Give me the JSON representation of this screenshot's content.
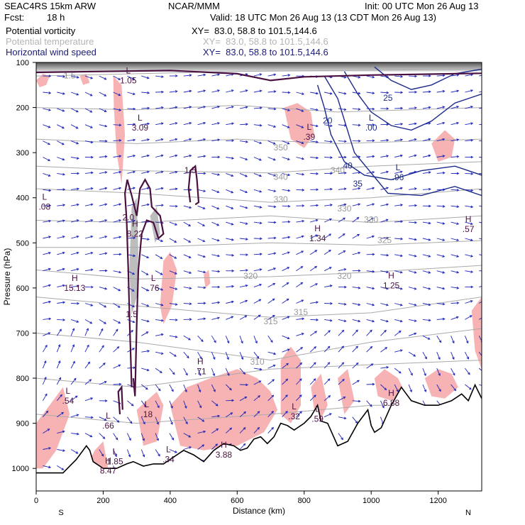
{
  "header": {
    "model": "SEAC4RS 15km ARW",
    "center": "NCAR/MMM",
    "init": "Init: 00 UTC Mon 26 Aug 13",
    "fcst_label": "Fcst:",
    "fcst_value": "18 h",
    "valid": "Valid: 18 UTC Mon 26 Aug 13 (13 CDT Mon 26 Aug 13)"
  },
  "fields": [
    {
      "name": "Potential vorticity",
      "xy": "XY=  83.0, 58.8 to 101.5,144.6",
      "color": "#000000"
    },
    {
      "name": "Potential temperature",
      "xy": "XY=  83.0, 58.8 to 101.5,144.6",
      "color": "#b4b4b4"
    },
    {
      "name": "Horizontal wind speed",
      "xy": "XY=  83.0, 58.8 to 101.5,144.6",
      "color": "#1b1b7a"
    }
  ],
  "colors": {
    "pv_contour": "#4a1140",
    "theta_contour": "#aaaaaa",
    "wind_contour": "#1b2a8a",
    "pv_shade": "#f7b3b3",
    "pv_shade_high": "#bdbdbd",
    "vector": "#1e24b8",
    "terrain": "#000000"
  },
  "chart_data": {
    "type": "cross-section",
    "xlabel": "Distance (km)",
    "ylabel": "Pressure (hPa)",
    "xlim": [
      0,
      1330
    ],
    "ylim": [
      1050,
      100
    ],
    "x_ticks": [
      0,
      200,
      400,
      600,
      800,
      1000,
      1200
    ],
    "y_ticks": [
      100,
      200,
      300,
      400,
      500,
      600,
      700,
      800,
      900,
      1000
    ],
    "end_labels": {
      "left": "S",
      "right": "N"
    },
    "terrain": [
      [
        0,
        1010
      ],
      [
        80,
        1010
      ],
      [
        120,
        980
      ],
      [
        150,
        950
      ],
      [
        160,
        960
      ],
      [
        170,
        985
      ],
      [
        200,
        1000
      ],
      [
        240,
        1000
      ],
      [
        270,
        990
      ],
      [
        290,
        985
      ],
      [
        320,
        995
      ],
      [
        350,
        990
      ],
      [
        380,
        990
      ],
      [
        410,
        975
      ],
      [
        440,
        960
      ],
      [
        470,
        970
      ],
      [
        500,
        985
      ],
      [
        530,
        960
      ],
      [
        560,
        945
      ],
      [
        590,
        950
      ],
      [
        610,
        960
      ],
      [
        630,
        955
      ],
      [
        650,
        935
      ],
      [
        670,
        930
      ],
      [
        690,
        945
      ],
      [
        710,
        930
      ],
      [
        730,
        900
      ],
      [
        750,
        905
      ],
      [
        770,
        915
      ],
      [
        800,
        900
      ],
      [
        820,
        885
      ],
      [
        840,
        860
      ],
      [
        850,
        895
      ],
      [
        870,
        900
      ],
      [
        900,
        950
      ],
      [
        930,
        940
      ],
      [
        960,
        900
      ],
      [
        990,
        870
      ],
      [
        1000,
        905
      ],
      [
        1010,
        920
      ],
      [
        1030,
        910
      ],
      [
        1060,
        860
      ],
      [
        1090,
        820
      ],
      [
        1120,
        850
      ],
      [
        1160,
        860
      ],
      [
        1200,
        860
      ],
      [
        1240,
        850
      ],
      [
        1270,
        835
      ],
      [
        1290,
        850
      ],
      [
        1310,
        815
      ],
      [
        1330,
        845
      ]
    ],
    "theta_labels": [
      {
        "text": "350",
        "x": 730,
        "p": 295
      },
      {
        "text": "340",
        "x": 730,
        "p": 360
      },
      {
        "text": "330",
        "x": 730,
        "p": 410
      },
      {
        "text": "320",
        "x": 640,
        "p": 580
      },
      {
        "text": "315",
        "x": 700,
        "p": 680
      },
      {
        "text": "310",
        "x": 660,
        "p": 770
      },
      {
        "text": "330",
        "x": 1000,
        "p": 455
      },
      {
        "text": "325",
        "x": 1040,
        "p": 500
      },
      {
        "text": "320",
        "x": 920,
        "p": 580
      },
      {
        "text": "315",
        "x": 790,
        "p": 660
      },
      {
        "text": "330",
        "x": 920,
        "p": 430
      },
      {
        "text": "340",
        "x": 900,
        "p": 345
      }
    ],
    "annotations": [
      {
        "kind": "L",
        "value": "1.05",
        "x": 275,
        "p": 140,
        "color": "#4a1140"
      },
      {
        "kind": "L",
        "value": "3.09",
        "x": 310,
        "p": 245,
        "color": "#4a1140"
      },
      {
        "kind": "L",
        "value": ".08",
        "x": 25,
        "p": 420,
        "color": "#4a1140"
      },
      {
        "kind": "H",
        "value": "8.22",
        "x": 295,
        "p": 480,
        "color": "#4a1140"
      },
      {
        "kind": "H",
        "value": "15.13",
        "x": 115,
        "p": 600,
        "color": "#4a1140"
      },
      {
        "kind": "L",
        "value": ".76",
        "x": 350,
        "p": 600,
        "color": "#4a1140"
      },
      {
        "kind": "H",
        "value": ".71",
        "x": 490,
        "p": 785,
        "color": "#4a1140"
      },
      {
        "kind": "L",
        "value": ".54",
        "x": 95,
        "p": 850,
        "color": "#4a1140"
      },
      {
        "kind": "L",
        "value": ".18",
        "x": 330,
        "p": 880,
        "color": "#4a1140"
      },
      {
        "kind": "L",
        "value": ".66",
        "x": 215,
        "p": 905,
        "color": "#4a1140"
      },
      {
        "kind": "L",
        "value": ".34",
        "x": 395,
        "p": 980,
        "color": "#4a1140"
      },
      {
        "kind": "H",
        "value": "3.88",
        "x": 560,
        "p": 970,
        "color": "#4a1140"
      },
      {
        "kind": "L",
        "value": "1.85",
        "x": 235,
        "p": 985,
        "color": "#4a1140"
      },
      {
        "kind": "H",
        "value": "8.47",
        "x": 215,
        "p": 1005,
        "color": "#4a1140"
      },
      {
        "kind": "L",
        "value": ".32",
        "x": 770,
        "p": 885,
        "color": "#4a1140"
      },
      {
        "kind": "L",
        "value": ".59",
        "x": 840,
        "p": 890,
        "color": "#4a1140"
      },
      {
        "kind": "H",
        "value": "6.88",
        "x": 1060,
        "p": 855,
        "color": "#4a1140"
      },
      {
        "kind": "L",
        "value": ".39",
        "x": 815,
        "p": 265,
        "color": "#4a1140"
      },
      {
        "kind": "H",
        "value": "1.34",
        "x": 840,
        "p": 490,
        "color": "#4a1140"
      },
      {
        "kind": "H",
        "value": "1.25",
        "x": 1060,
        "p": 595,
        "color": "#4a1140"
      },
      {
        "kind": "H",
        "value": ".57",
        "x": 1290,
        "p": 470,
        "color": "#4a1140"
      },
      {
        "kind": "L",
        "value": ".96",
        "x": 1080,
        "p": 355,
        "color": "#1b2a8a"
      },
      {
        "kind": "L",
        "value": ".00",
        "x": 1000,
        "p": 245,
        "color": "#1b2a8a"
      }
    ],
    "contour_labels": [
      {
        "text": "1.5",
        "x": 100,
        "p": 135,
        "color": "#8a8a8a"
      },
      {
        "text": "1.5",
        "x": 460,
        "p": 345,
        "color": "#4a1140"
      },
      {
        "text": "1.5",
        "x": 285,
        "p": 665,
        "color": "#4a1140"
      },
      {
        "text": "2.0",
        "x": 275,
        "p": 450,
        "color": "#4a1140"
      },
      {
        "text": "20",
        "x": 870,
        "p": 235,
        "color": "#1b2a8a"
      },
      {
        "text": "25",
        "x": 1050,
        "p": 185,
        "color": "#1b2a8a"
      },
      {
        "text": "40",
        "x": 930,
        "p": 335,
        "color": "#1b2a8a"
      },
      {
        "text": "35",
        "x": 960,
        "p": 375,
        "color": "#1b2a8a"
      }
    ]
  }
}
